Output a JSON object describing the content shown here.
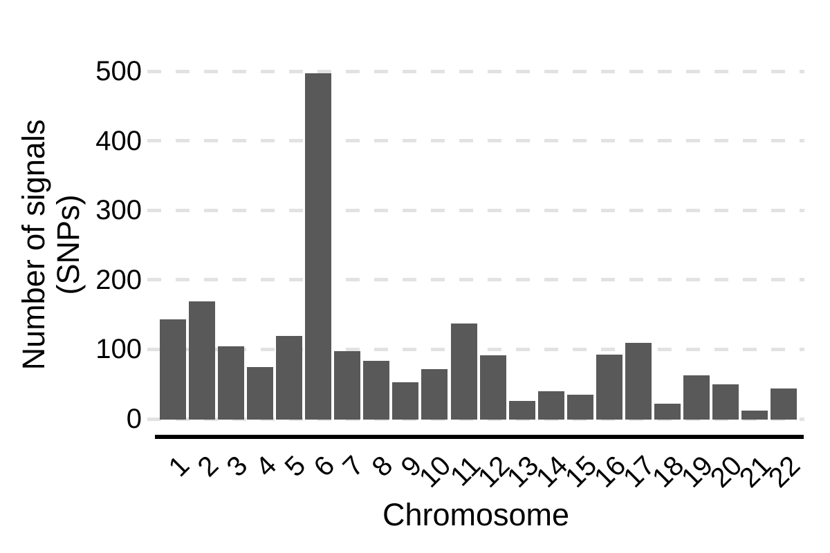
{
  "chart_data": {
    "type": "bar",
    "title": "",
    "xlabel": "Chromosome",
    "ylabel": "Number of signals (SNPs)",
    "ylabel_lines": [
      "Number of signals",
      "(SNPs)"
    ],
    "categories": [
      "1",
      "2",
      "3",
      "4",
      "5",
      "6",
      "7",
      "8",
      "9",
      "10",
      "11",
      "12",
      "13",
      "14",
      "15",
      "16",
      "17",
      "18",
      "19",
      "20",
      "21",
      "22"
    ],
    "values": [
      144,
      170,
      105,
      76,
      120,
      498,
      98,
      84,
      54,
      73,
      138,
      92,
      27,
      41,
      36,
      93,
      110,
      23,
      64,
      51,
      13,
      45
    ],
    "yticks": [
      0,
      100,
      200,
      300,
      400,
      500
    ],
    "ylim": [
      0,
      500
    ],
    "grid": "horizontal-dashed",
    "legend": "none",
    "bar_color": "#595959",
    "gridline_color": "#e2e2e2",
    "axis_line_color": "#000000",
    "text_color": "#000000",
    "background_color": "#ffffff"
  }
}
